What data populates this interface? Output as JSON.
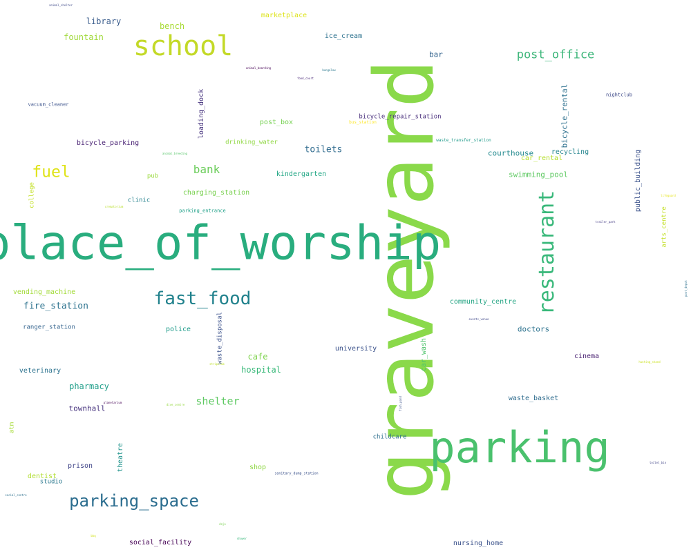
{
  "words": [
    {
      "text": "graveyard",
      "color": "#8ad94a"
    },
    {
      "text": "place_of_worship",
      "color": "#29ad7e"
    },
    {
      "text": "parking",
      "color": "#4ac16d"
    },
    {
      "text": "school",
      "color": "#c3d927"
    },
    {
      "text": "restaurant",
      "color": "#39b87a"
    },
    {
      "text": "fast_food",
      "color": "#20818c"
    },
    {
      "text": "parking_space",
      "color": "#2a6c8e"
    },
    {
      "text": "post_office",
      "color": "#3db67a"
    },
    {
      "text": "fuel",
      "color": "#dfe318"
    },
    {
      "text": "bank",
      "color": "#6bcd5a"
    },
    {
      "text": "shelter",
      "color": "#5ec962"
    },
    {
      "text": "toilets",
      "color": "#2f6b8e"
    },
    {
      "text": "library",
      "color": "#3a5c8c"
    },
    {
      "text": "fountain",
      "color": "#a0d93a"
    },
    {
      "text": "bench",
      "color": "#a8db34"
    },
    {
      "text": "marketplace",
      "color": "#dde318"
    },
    {
      "text": "ice_cream",
      "color": "#2c718e"
    },
    {
      "text": "bar",
      "color": "#33638d"
    },
    {
      "text": "bicycle_rental",
      "color": "#2d708e"
    },
    {
      "text": "nightclub",
      "color": "#3e4a89"
    },
    {
      "text": "vacuum_cleaner",
      "color": "#3b528b"
    },
    {
      "text": "loading_dock",
      "color": "#46337e"
    },
    {
      "text": "post_box",
      "color": "#77d153"
    },
    {
      "text": "bus_station",
      "color": "#fde725"
    },
    {
      "text": "bicycle_repair_station",
      "color": "#472d7b"
    },
    {
      "text": "waste_transfer_station",
      "color": "#1f9a8a"
    },
    {
      "text": "bicycle_parking",
      "color": "#482173"
    },
    {
      "text": "animal_breeding",
      "color": "#55c568"
    },
    {
      "text": "drinking_water",
      "color": "#90d743"
    },
    {
      "text": "courthouse",
      "color": "#23898e"
    },
    {
      "text": "recycling",
      "color": "#25858e"
    },
    {
      "text": "car_rental",
      "color": "#b5de2b"
    },
    {
      "text": "public_building",
      "color": "#3b528b"
    },
    {
      "text": "pub",
      "color": "#9ad93c"
    },
    {
      "text": "kindergarten",
      "color": "#22a785"
    },
    {
      "text": "swimming_pool",
      "color": "#5ec962"
    },
    {
      "text": "charging_station",
      "color": "#7ad151"
    },
    {
      "text": "college",
      "color": "#c2df23"
    },
    {
      "text": "clinic",
      "color": "#26828e"
    },
    {
      "text": "crematorium",
      "color": "#b8de29"
    },
    {
      "text": "parking_entrance",
      "color": "#1fa088"
    },
    {
      "text": "arts_centre",
      "color": "#c2df23"
    },
    {
      "text": "trailer_park",
      "color": "#443b84"
    },
    {
      "text": "vending_machine",
      "color": "#a2da37"
    },
    {
      "text": "fire_station",
      "color": "#2c728e"
    },
    {
      "text": "ranger_station",
      "color": "#33638d"
    },
    {
      "text": "police",
      "color": "#1e9b8a"
    },
    {
      "text": "waste_disposal",
      "color": "#3b518b"
    },
    {
      "text": "community_centre",
      "color": "#25a584"
    },
    {
      "text": "doctors",
      "color": "#2c728e"
    },
    {
      "text": "car_wash",
      "color": "#4ec36b"
    },
    {
      "text": "events_venue",
      "color": "#3f4788"
    },
    {
      "text": "cafe",
      "color": "#7fd34e"
    },
    {
      "text": "hospital",
      "color": "#37b878"
    },
    {
      "text": "university",
      "color": "#3b528b"
    },
    {
      "text": "cinema",
      "color": "#481f70"
    },
    {
      "text": "veterinary",
      "color": "#2c728e"
    },
    {
      "text": "pharmacy",
      "color": "#1f9e89"
    },
    {
      "text": "townhall",
      "color": "#46327e"
    },
    {
      "text": "waste_basket",
      "color": "#2f6c8e"
    },
    {
      "text": "atm",
      "color": "#a5db36"
    },
    {
      "text": "theatre",
      "color": "#20938c"
    },
    {
      "text": "childcare",
      "color": "#2e6f8e"
    },
    {
      "text": "prison",
      "color": "#404588"
    },
    {
      "text": "shop",
      "color": "#8fd744"
    },
    {
      "text": "dentist",
      "color": "#b0dd2f"
    },
    {
      "text": "studio",
      "color": "#2a788e"
    },
    {
      "text": "social_centre",
      "color": "#2d708e"
    },
    {
      "text": "social_facility",
      "color": "#440154"
    },
    {
      "text": "nursing_home",
      "color": "#3b528b"
    },
    {
      "text": "animal_shelter",
      "color": "#3e4989"
    },
    {
      "text": "animal_boarding",
      "color": "#440154"
    },
    {
      "text": "food_court",
      "color": "#482677"
    },
    {
      "text": "stripclub",
      "color": "#bddf26"
    },
    {
      "text": "planetarium",
      "color": "#440154"
    },
    {
      "text": "dive_centre",
      "color": "#95d840"
    },
    {
      "text": "hunting_stand",
      "color": "#cae11f"
    },
    {
      "text": "sanitary_dump_station",
      "color": "#3b528b"
    },
    {
      "text": "toilet_bin",
      "color": "#414487"
    },
    {
      "text": "post_depot",
      "color": "#2d708e"
    },
    {
      "text": "bbq",
      "color": "#d2e21b"
    },
    {
      "text": "dojo",
      "color": "#7ad151"
    },
    {
      "text": "shower",
      "color": "#35b779"
    },
    {
      "text": "lifeguard",
      "color": "#e5e419"
    },
    {
      "text": "bungalow",
      "color": "#2a788e"
    },
    {
      "text": "fish_pond",
      "color": "#3b528b"
    }
  ]
}
